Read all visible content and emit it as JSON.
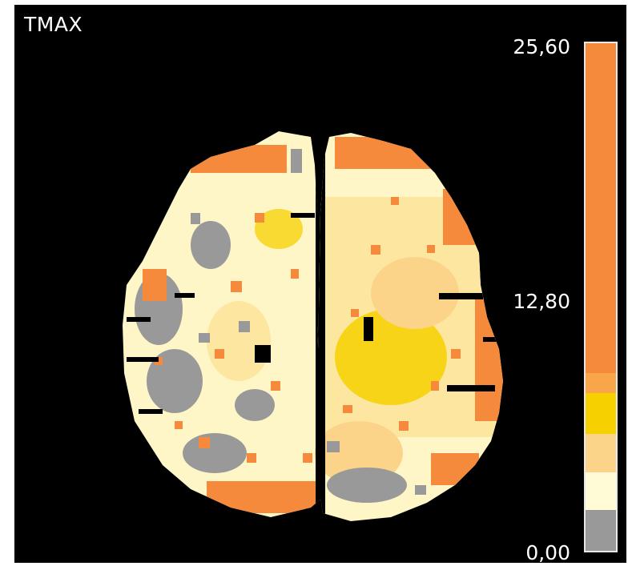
{
  "title": "TMAX",
  "colorbar": {
    "max_label": "25,60",
    "mid_label": "12,80",
    "min_label": "0,00",
    "segments": [
      {
        "name": "highest",
        "color": "#f58a3c",
        "fraction": 0.65
      },
      {
        "name": "high",
        "color": "#f9a64a",
        "fraction": 0.04
      },
      {
        "name": "mid-high",
        "color": "#f7d000",
        "fraction": 0.08
      },
      {
        "name": "mid",
        "color": "#fbd48a",
        "fraction": 0.075
      },
      {
        "name": "low",
        "color": "#fffbd7",
        "fraction": 0.075
      },
      {
        "name": "lowest",
        "color": "#999999",
        "fraction": 0.08
      }
    ]
  },
  "map_palette": {
    "gray": "#999999",
    "cream": "#fff6c8",
    "pale": "#fce6a0",
    "light_orange": "#fbd48a",
    "yellow": "#f7d000",
    "orange": "#f58a3c",
    "background": "#000000"
  }
}
